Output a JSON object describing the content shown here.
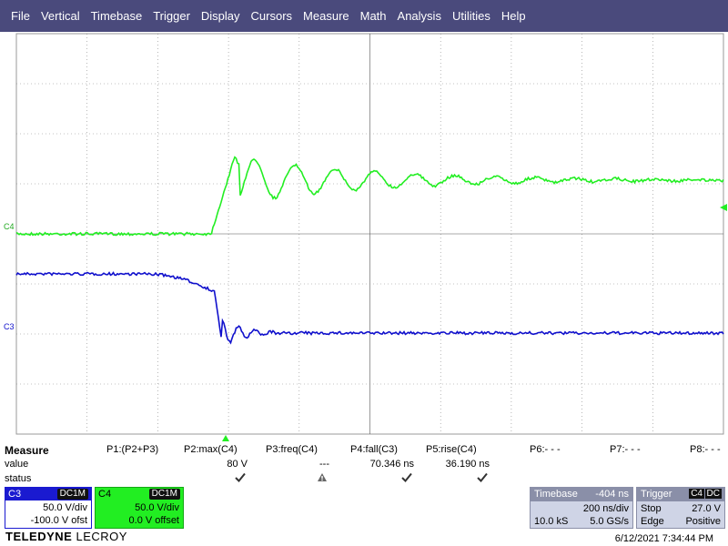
{
  "menu": [
    "File",
    "Vertical",
    "Timebase",
    "Trigger",
    "Display",
    "Cursors",
    "Measure",
    "Math",
    "Analysis",
    "Utilities",
    "Help"
  ],
  "channels_on_screen": {
    "c4_label": "C4",
    "c3_label": "C3",
    "c4_color": "#22ee22",
    "c3_color": "#1010cc"
  },
  "measure": {
    "title": "Measure",
    "row_labels": [
      "value",
      "status"
    ],
    "columns": [
      {
        "header": "P1:(P2+P3)",
        "value": "",
        "status": ""
      },
      {
        "header": "P2:max(C4)",
        "value": "80 V",
        "status": "check"
      },
      {
        "header": "P3:freq(C4)",
        "value": "---",
        "status": "warning"
      },
      {
        "header": "P4:fall(C3)",
        "value": "70.346 ns",
        "status": "check"
      },
      {
        "header": "P5:rise(C4)",
        "value": "36.190 ns",
        "status": "check"
      },
      {
        "header": "P6:- - -",
        "value": "",
        "status": ""
      },
      {
        "header": "P7:- - -",
        "value": "",
        "status": ""
      },
      {
        "header": "P8:- - -",
        "value": "",
        "status": ""
      }
    ]
  },
  "channel_boxes": {
    "c3": {
      "name": "C3",
      "coupling": "DC1M",
      "vdiv": "50.0 V/div",
      "offset": "-100.0 V ofst",
      "color": "#1a1ad0"
    },
    "c4": {
      "name": "C4",
      "coupling": "DC1M",
      "vdiv": "50.0 V/div",
      "offset": "0.0 V offset",
      "color": "#22ee22"
    }
  },
  "timebase": {
    "label": "Timebase",
    "delay": "-404 ns",
    "tdiv": "200 ns/div",
    "samples": "10.0 kS",
    "rate": "5.0 GS/s"
  },
  "trigger": {
    "label": "Trigger",
    "source": "C4",
    "coupling": "DC",
    "mode": "Stop",
    "level": "27.0 V",
    "type": "Edge",
    "slope": "Positive"
  },
  "brand": {
    "name": "TELEDYNE",
    "sub": "LECROY"
  },
  "datetime": "6/12/2021 7:34:44 PM"
}
